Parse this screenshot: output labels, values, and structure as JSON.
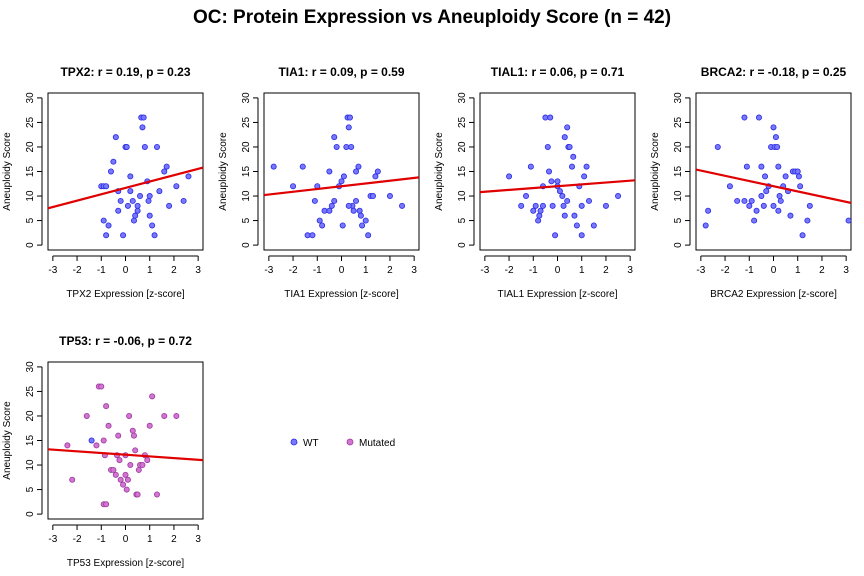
{
  "title": "OC: Protein Expression vs Aneuploidy Score (n = 42)",
  "colors": {
    "wt": "#7777ff",
    "wt_stroke": "#2a2ae0",
    "mutated": "#d275d2",
    "mutated_stroke": "#9e3a9e",
    "fit": "#e00000"
  },
  "legend": [
    {
      "label": "WT",
      "key": "wt"
    },
    {
      "label": "Mutated",
      "key": "mutated"
    }
  ],
  "chart_data": [
    {
      "type": "scatter",
      "title": "TPX2: r = 0.19, p = 0.23",
      "xlabel": "TPX2 Expression [z-score]",
      "ylabel": "Aneuploidy Score",
      "xlim": [
        -3.2,
        3.2
      ],
      "ylim": [
        -1,
        31
      ],
      "xticks": [
        -3,
        -2,
        -1,
        0,
        1,
        2,
        3
      ],
      "yticks": [
        0,
        5,
        10,
        15,
        20,
        25,
        30
      ],
      "fit": [
        7.5,
        15.8
      ],
      "series": [
        {
          "group": "wt",
          "points": [
            [
              -1.0,
              12
            ],
            [
              -0.9,
              12
            ],
            [
              -0.8,
              12
            ],
            [
              -0.9,
              5
            ],
            [
              -0.8,
              2
            ],
            [
              -0.7,
              4
            ],
            [
              -0.6,
              15
            ],
            [
              -0.5,
              17
            ],
            [
              -0.4,
              22
            ],
            [
              -0.3,
              7
            ],
            [
              -0.2,
              9
            ],
            [
              -0.1,
              2
            ],
            [
              0.0,
              20
            ],
            [
              0.05,
              20
            ],
            [
              0.1,
              8
            ],
            [
              0.2,
              14
            ],
            [
              0.3,
              9
            ],
            [
              0.35,
              5
            ],
            [
              0.4,
              6
            ],
            [
              0.5,
              7
            ],
            [
              0.6,
              10
            ],
            [
              0.7,
              24
            ],
            [
              0.65,
              26
            ],
            [
              0.75,
              26
            ],
            [
              0.8,
              20
            ],
            [
              0.9,
              13
            ],
            [
              0.95,
              9
            ],
            [
              1.0,
              10
            ],
            [
              1.1,
              4
            ],
            [
              1.2,
              2
            ],
            [
              1.3,
              20
            ],
            [
              1.4,
              11
            ],
            [
              1.6,
              15
            ],
            [
              1.7,
              16
            ],
            [
              1.8,
              8
            ],
            [
              2.1,
              12
            ],
            [
              2.4,
              9
            ],
            [
              2.6,
              14
            ],
            [
              0.2,
              11
            ],
            [
              -0.3,
              11
            ],
            [
              0.5,
              8
            ],
            [
              1.0,
              6
            ]
          ]
        }
      ]
    },
    {
      "type": "scatter",
      "title": "TIA1: r = 0.09, p = 0.59",
      "xlabel": "TIA1 Expression [z-score]",
      "ylabel": "Aneuploidy Score",
      "xlim": [
        -3.2,
        3.2
      ],
      "ylim": [
        -1,
        31
      ],
      "xticks": [
        -3,
        -2,
        -1,
        0,
        1,
        2,
        3
      ],
      "yticks": [
        0,
        5,
        10,
        15,
        20,
        25,
        30
      ],
      "fit": [
        10.2,
        13.8
      ],
      "series": [
        {
          "group": "wt",
          "points": [
            [
              -2.8,
              16
            ],
            [
              -2.0,
              12
            ],
            [
              -1.6,
              16
            ],
            [
              -1.4,
              2
            ],
            [
              -1.2,
              2
            ],
            [
              -1.1,
              9
            ],
            [
              -1.0,
              12
            ],
            [
              -0.9,
              5
            ],
            [
              -0.8,
              4
            ],
            [
              -0.7,
              7
            ],
            [
              -0.5,
              15
            ],
            [
              -0.4,
              8
            ],
            [
              -0.3,
              22
            ],
            [
              -0.2,
              20
            ],
            [
              -0.1,
              12
            ],
            [
              0.0,
              13
            ],
            [
              0.05,
              4
            ],
            [
              0.1,
              14
            ],
            [
              0.2,
              20
            ],
            [
              0.25,
              26
            ],
            [
              0.3,
              24
            ],
            [
              0.35,
              26
            ],
            [
              0.4,
              20
            ],
            [
              0.45,
              8
            ],
            [
              0.5,
              7
            ],
            [
              0.6,
              15
            ],
            [
              0.7,
              16
            ],
            [
              0.75,
              7
            ],
            [
              0.8,
              6
            ],
            [
              0.85,
              4
            ],
            [
              1.0,
              5
            ],
            [
              1.1,
              2
            ],
            [
              1.2,
              10
            ],
            [
              1.3,
              10
            ],
            [
              1.4,
              14
            ],
            [
              1.5,
              15
            ],
            [
              2.0,
              10
            ],
            [
              2.5,
              8
            ],
            [
              -0.3,
              9
            ],
            [
              0.3,
              8
            ],
            [
              0.6,
              9
            ],
            [
              -0.5,
              7
            ]
          ]
        }
      ]
    },
    {
      "type": "scatter",
      "title": "TIAL1: r = 0.06, p = 0.71",
      "xlabel": "TIAL1 Expression [z-score]",
      "ylabel": "Aneuploidy Score",
      "xlim": [
        -3.2,
        3.2
      ],
      "ylim": [
        -1,
        31
      ],
      "xticks": [
        -3,
        -2,
        -1,
        0,
        1,
        2,
        3
      ],
      "yticks": [
        0,
        5,
        10,
        15,
        20,
        25,
        30
      ],
      "fit": [
        10.8,
        13.2
      ],
      "series": [
        {
          "group": "wt",
          "points": [
            [
              -2.0,
              14
            ],
            [
              -1.5,
              8
            ],
            [
              -1.3,
              10
            ],
            [
              -1.1,
              16
            ],
            [
              -1.0,
              7
            ],
            [
              -0.9,
              8
            ],
            [
              -0.8,
              5
            ],
            [
              -0.75,
              6
            ],
            [
              -0.7,
              7
            ],
            [
              -0.6,
              8
            ],
            [
              -0.5,
              26
            ],
            [
              -0.4,
              20
            ],
            [
              -0.35,
              15
            ],
            [
              -0.3,
              26
            ],
            [
              -0.25,
              13
            ],
            [
              -0.2,
              8
            ],
            [
              -0.1,
              2
            ],
            [
              0.0,
              12
            ],
            [
              0.1,
              11
            ],
            [
              0.2,
              10
            ],
            [
              0.25,
              8
            ],
            [
              0.3,
              22
            ],
            [
              0.4,
              24
            ],
            [
              0.45,
              20
            ],
            [
              0.5,
              20
            ],
            [
              0.6,
              16
            ],
            [
              0.65,
              18
            ],
            [
              0.7,
              6
            ],
            [
              0.8,
              4
            ],
            [
              0.9,
              12
            ],
            [
              1.0,
              2
            ],
            [
              1.1,
              14
            ],
            [
              1.2,
              16
            ],
            [
              1.3,
              9
            ],
            [
              1.5,
              4
            ],
            [
              2.0,
              8
            ],
            [
              2.5,
              10
            ],
            [
              -0.6,
              12
            ],
            [
              0.0,
              13
            ],
            [
              0.4,
              9
            ],
            [
              1.0,
              8
            ],
            [
              0.3,
              6
            ]
          ]
        }
      ]
    },
    {
      "type": "scatter",
      "title": "BRCA2: r = -0.18, p = 0.25",
      "xlabel": "BRCA2 Expression [z-score]",
      "ylabel": "Aneuploidy Score",
      "xlim": [
        -3.2,
        3.2
      ],
      "ylim": [
        -1,
        31
      ],
      "xticks": [
        -3,
        -2,
        -1,
        0,
        1,
        2,
        3
      ],
      "yticks": [
        0,
        5,
        10,
        15,
        20,
        25,
        30
      ],
      "fit": [
        15.4,
        8.6
      ],
      "series": [
        {
          "group": "wt",
          "points": [
            [
              -2.8,
              4
            ],
            [
              -2.7,
              7
            ],
            [
              -2.3,
              20
            ],
            [
              -1.8,
              12
            ],
            [
              -1.5,
              9
            ],
            [
              -1.2,
              26
            ],
            [
              -1.1,
              16
            ],
            [
              -1.0,
              8
            ],
            [
              -0.9,
              9
            ],
            [
              -0.8,
              5
            ],
            [
              -0.7,
              7
            ],
            [
              -0.6,
              26
            ],
            [
              -0.5,
              16
            ],
            [
              -0.4,
              8
            ],
            [
              -0.35,
              14
            ],
            [
              -0.3,
              11
            ],
            [
              -0.2,
              12
            ],
            [
              -0.1,
              20
            ],
            [
              0.0,
              24
            ],
            [
              0.05,
              20
            ],
            [
              0.1,
              22
            ],
            [
              0.15,
              20
            ],
            [
              0.2,
              16
            ],
            [
              0.25,
              10
            ],
            [
              0.3,
              9
            ],
            [
              0.4,
              12
            ],
            [
              0.5,
              14
            ],
            [
              0.6,
              11
            ],
            [
              0.8,
              15
            ],
            [
              0.9,
              15
            ],
            [
              1.0,
              15
            ],
            [
              1.05,
              14
            ],
            [
              1.1,
              12
            ],
            [
              1.2,
              2
            ],
            [
              1.4,
              5
            ],
            [
              1.5,
              8
            ],
            [
              3.1,
              5
            ],
            [
              -0.5,
              10
            ],
            [
              0.2,
              7
            ],
            [
              0.7,
              6
            ],
            [
              -1.2,
              9
            ],
            [
              0.0,
              8
            ]
          ]
        }
      ]
    },
    {
      "type": "scatter",
      "title": "TP53: r = -0.06, p = 0.72",
      "xlabel": "TP53 Expression [z-score]",
      "ylabel": "Aneuploidy Score",
      "xlim": [
        -3.2,
        3.2
      ],
      "ylim": [
        -1,
        31
      ],
      "xticks": [
        -3,
        -2,
        -1,
        0,
        1,
        2,
        3
      ],
      "yticks": [
        0,
        5,
        10,
        15,
        20,
        25,
        30
      ],
      "fit": [
        13.2,
        11.0
      ],
      "series": [
        {
          "group": "wt",
          "points": [
            [
              -1.4,
              15
            ]
          ]
        },
        {
          "group": "mutated",
          "points": [
            [
              -2.4,
              14
            ],
            [
              -2.2,
              7
            ],
            [
              -1.6,
              20
            ],
            [
              -1.2,
              14
            ],
            [
              -1.1,
              26
            ],
            [
              -1.0,
              26
            ],
            [
              -0.9,
              2
            ],
            [
              -0.8,
              2
            ],
            [
              -0.9,
              15
            ],
            [
              -0.85,
              12
            ],
            [
              -0.8,
              22
            ],
            [
              -0.7,
              18
            ],
            [
              -0.6,
              9
            ],
            [
              -0.5,
              9
            ],
            [
              -0.4,
              8
            ],
            [
              -0.35,
              12
            ],
            [
              -0.3,
              16
            ],
            [
              -0.25,
              11
            ],
            [
              -0.2,
              7
            ],
            [
              -0.1,
              6
            ],
            [
              0.0,
              8
            ],
            [
              0.05,
              5
            ],
            [
              0.1,
              7
            ],
            [
              0.15,
              20
            ],
            [
              0.2,
              10
            ],
            [
              0.3,
              17
            ],
            [
              0.35,
              16
            ],
            [
              0.4,
              13
            ],
            [
              0.45,
              4
            ],
            [
              0.5,
              4
            ],
            [
              0.55,
              9
            ],
            [
              0.6,
              10
            ],
            [
              0.7,
              10
            ],
            [
              0.8,
              12
            ],
            [
              0.9,
              11
            ],
            [
              1.0,
              18
            ],
            [
              1.1,
              24
            ],
            [
              1.3,
              4
            ],
            [
              1.6,
              20
            ],
            [
              2.1,
              20
            ],
            [
              0.0,
              12
            ]
          ]
        }
      ]
    }
  ]
}
